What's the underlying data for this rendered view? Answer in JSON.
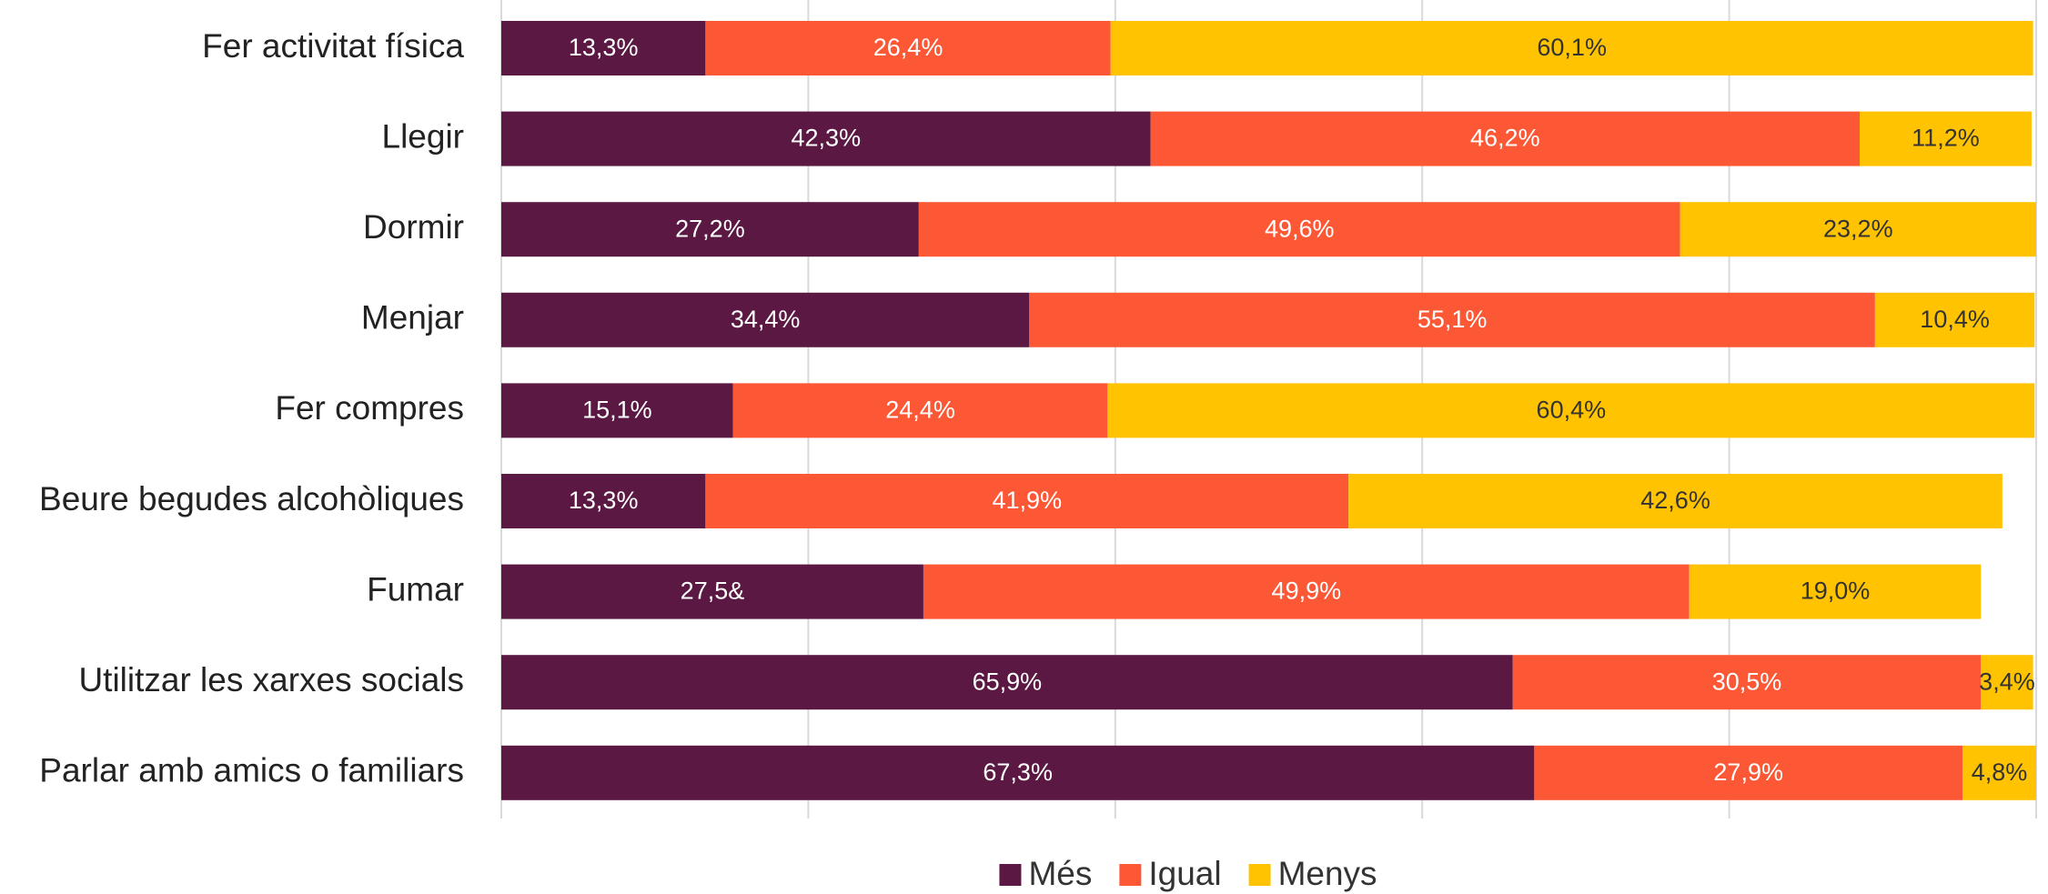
{
  "chart_data": {
    "type": "stacked-barh",
    "categories": [
      "Fer activitat física",
      "Llegir",
      "Dormir",
      "Menjar",
      "Fer compres",
      "Beure begudes alcohòliques",
      "Fumar",
      "Utilitzar les xarxes socials",
      "Parlar amb amics o familiars"
    ],
    "series": [
      {
        "name": "Més",
        "color": "#5a1843",
        "values": [
          13.3,
          42.3,
          27.2,
          34.4,
          15.1,
          13.3,
          27.5,
          65.9,
          67.3
        ],
        "value_labels": [
          "13,3%",
          "42,3%",
          "27,2%",
          "34,4%",
          "15,1%",
          "13,3%",
          "27,5&",
          "65,9%",
          "67,3%"
        ]
      },
      {
        "name": "Igual",
        "color": "#fd5836",
        "values": [
          26.4,
          46.2,
          49.6,
          55.1,
          24.4,
          41.9,
          49.9,
          30.5,
          27.9
        ],
        "value_labels": [
          "26,4%",
          "46,2%",
          "49,6%",
          "55,1%",
          "24,4%",
          "41,9%",
          "49,9%",
          "30,5%",
          "27,9%"
        ]
      },
      {
        "name": "Menys",
        "color": "#ffc301",
        "values": [
          60.1,
          11.2,
          23.2,
          10.4,
          60.4,
          42.6,
          19.0,
          3.4,
          4.8
        ],
        "value_labels": [
          "60,1%",
          "11,2%",
          "23,2%",
          "10,4%",
          "60,4%",
          "42,6%",
          "19,0%",
          "3,4%",
          "4,8%"
        ]
      }
    ],
    "xlim": [
      0,
      100
    ],
    "xticks": [
      0,
      20,
      40,
      60,
      80,
      100
    ],
    "grid": true,
    "legend": "bottom"
  }
}
